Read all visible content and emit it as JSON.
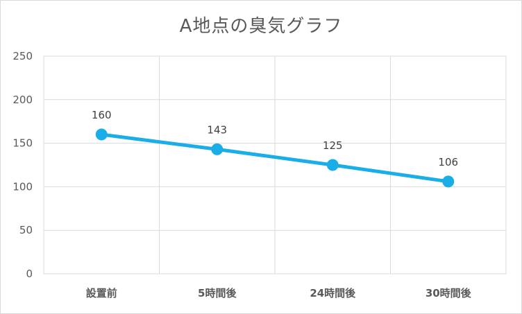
{
  "chart_data": {
    "type": "line",
    "title": "A地点の臭気グラフ",
    "categories": [
      "設置前",
      "5時間後",
      "24時間後",
      "30時間後"
    ],
    "series": [
      {
        "values": [
          160,
          143,
          125,
          106
        ]
      }
    ],
    "ylim": [
      0,
      250
    ],
    "yticks": [
      "0",
      "50",
      "100",
      "150",
      "200",
      "250"
    ],
    "data_labels": [
      "160",
      "143",
      "125",
      "106"
    ],
    "grid": true,
    "legend": "none",
    "colors": {
      "line": "#1AADE8",
      "grid": "#D9D9D9",
      "text": "#595959"
    }
  }
}
